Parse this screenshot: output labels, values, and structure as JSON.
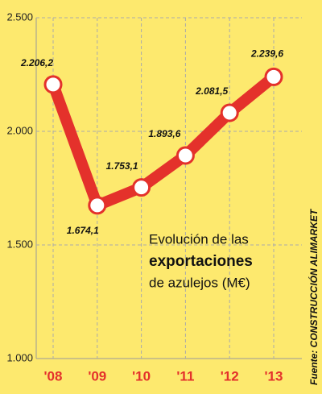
{
  "chart_data": {
    "type": "line",
    "categories": [
      "'08",
      "'09",
      "'10",
      "'11",
      "'12",
      "'13"
    ],
    "values": [
      2206.2,
      1674.1,
      1753.1,
      1893.6,
      2081.5,
      2239.6
    ],
    "value_labels": [
      "2.206,2",
      "1.674,1",
      "1.753,1",
      "1.893,6",
      "2.081,5",
      "2.239,6"
    ],
    "color": "#e4312b",
    "ylim": [
      1000,
      2500
    ],
    "yticks": [
      {
        "value": 1000,
        "label": "1.000"
      },
      {
        "value": 1500,
        "label": "1.500"
      },
      {
        "value": 2000,
        "label": "2.000"
      },
      {
        "value": 2500,
        "label": "2.500"
      }
    ],
    "grid": true,
    "annotations": [
      "Evolución de las",
      "exportaciones",
      "de azulejos (M€)"
    ],
    "source": "Fuente: CONSTRUCCIÓN ALIMARKET"
  }
}
